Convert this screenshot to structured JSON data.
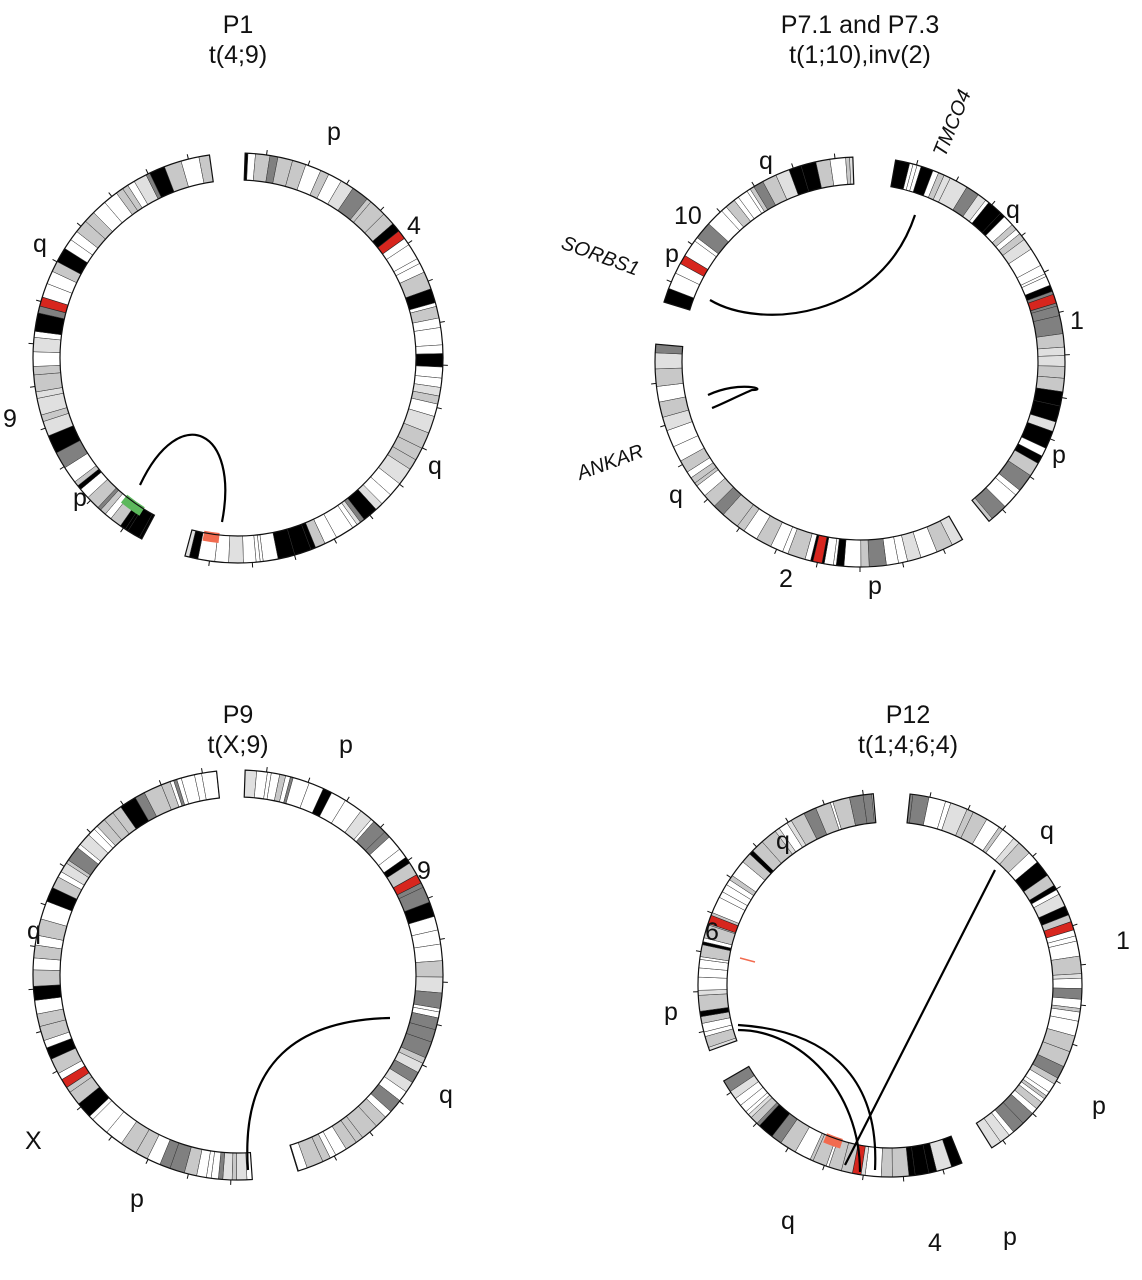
{
  "panels": [
    {
      "id": "P1",
      "title": "P1",
      "subtitle": "t(4;9)",
      "chromosomes": [
        {
          "name": "4",
          "arm_labels": [
            "p",
            "q"
          ]
        },
        {
          "name": "9",
          "arm_labels": [
            "q",
            "p"
          ]
        }
      ],
      "highlights": [
        "green-on-9",
        "orange-on-4"
      ]
    },
    {
      "id": "P7",
      "title": "P7.1 and P7.3",
      "subtitle": "t(1;10),inv(2)",
      "chromosomes": [
        {
          "name": "1",
          "arm_labels": [
            "q",
            "p"
          ]
        },
        {
          "name": "2",
          "arm_labels": [
            "p",
            "q"
          ]
        },
        {
          "name": "10",
          "arm_labels": [
            "p",
            "q"
          ]
        }
      ],
      "genes": [
        "SORBS1",
        "TMCO4",
        "ANKAR"
      ]
    },
    {
      "id": "P9",
      "title": "P9",
      "subtitle": "t(X;9)",
      "chromosomes": [
        {
          "name": "9",
          "arm_labels": [
            "p",
            "q"
          ]
        },
        {
          "name": "X",
          "arm_labels": [
            "p",
            "q"
          ]
        }
      ]
    },
    {
      "id": "P12",
      "title": "P12",
      "subtitle": "t(1;4;6;4)",
      "chromosomes": [
        {
          "name": "1",
          "arm_labels": [
            "q",
            "p"
          ]
        },
        {
          "name": "4",
          "arm_labels": [
            "p",
            "q"
          ]
        },
        {
          "name": "6",
          "arm_labels": [
            "p",
            "q"
          ]
        }
      ]
    }
  ],
  "colors": {
    "centromere": "#d7261e",
    "breakpoint_orange": "#f26b4f",
    "breakpoint_green": "#5cb85c",
    "band_dark": "#000000",
    "band_mid": "#808080",
    "band_light": "#c8c8c8",
    "band_pale": "#e0e0e0"
  }
}
